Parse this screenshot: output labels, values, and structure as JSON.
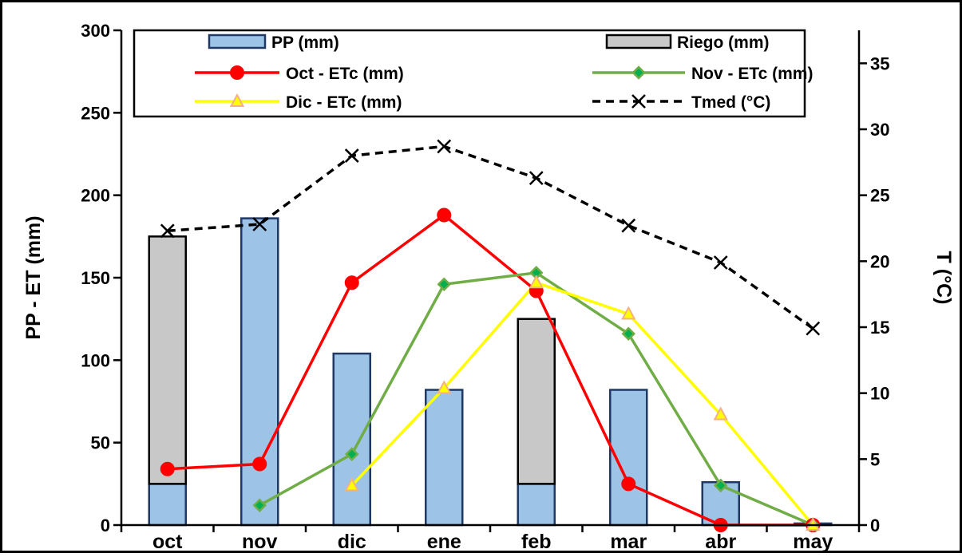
{
  "chart_data": {
    "type": "bar",
    "categories": [
      "oct",
      "nov",
      "dic",
      "ene",
      "feb",
      "mar",
      "abr",
      "may"
    ],
    "ylabel": "PP - ET (mm)",
    "y2label": "T (°C)",
    "ylim": [
      0,
      300
    ],
    "y2lim": [
      0,
      37.5
    ],
    "yticks": [
      0,
      50,
      100,
      150,
      200,
      250,
      300
    ],
    "y2ticks": [
      0,
      5,
      10,
      15,
      20,
      25,
      30,
      35
    ],
    "bars": [
      {
        "name": "PP (mm)",
        "color": "#9dc3e6",
        "stroke": "#1f3864",
        "values": [
          25,
          186,
          104,
          82,
          25,
          82,
          26,
          1
        ]
      },
      {
        "name": "Riego (mm)",
        "color": "#c8c8c8",
        "stroke": "#000000",
        "values": [
          150,
          0,
          0,
          0,
          100,
          0,
          0,
          0
        ]
      }
    ],
    "lines": [
      {
        "name": "Oct - ETc (mm)",
        "axis": "left",
        "color": "#ff0000",
        "marker": "circle",
        "markerFill": "#ff0000",
        "markerStroke": "#ff0000",
        "dash": false,
        "values": [
          34,
          37,
          147,
          188,
          142,
          25,
          0,
          0
        ]
      },
      {
        "name": "Nov - ETc (mm)",
        "axis": "left",
        "color": "#70ad47",
        "marker": "diamond",
        "markerFill": "#00b050",
        "markerStroke": "#70ad47",
        "dash": false,
        "values": [
          null,
          12,
          43,
          146,
          153,
          116,
          24,
          0
        ]
      },
      {
        "name": "Dic - ETc (mm)",
        "axis": "left",
        "color": "#ffff00",
        "marker": "triangle",
        "markerFill": "#ffff00",
        "markerStroke": "#f4b183",
        "dash": false,
        "values": [
          null,
          null,
          24,
          83,
          147,
          128,
          67,
          0
        ]
      },
      {
        "name": "Tmed (°C)",
        "axis": "right",
        "color": "#000000",
        "marker": "x",
        "markerFill": "none",
        "markerStroke": "#000000",
        "dash": true,
        "values": [
          22.3,
          22.8,
          28.0,
          28.7,
          26.3,
          22.7,
          19.9,
          14.9
        ]
      }
    ],
    "legend": [
      "PP (mm)",
      "Riego (mm)",
      "Oct - ETc (mm)",
      "Nov - ETc (mm)",
      "Dic - ETc (mm)",
      "Tmed (°C)"
    ],
    "legend_position": "top",
    "grid": false
  }
}
